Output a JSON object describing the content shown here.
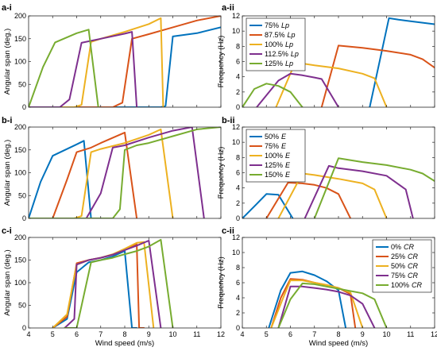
{
  "figure": {
    "colors": [
      "#0072BD",
      "#D95319",
      "#EDB120",
      "#7E2F8E",
      "#77AC30"
    ]
  },
  "chart_data": [
    {
      "id": "a-i",
      "panel_label": "a-i",
      "type": "line",
      "xlabel": "",
      "ylabel": "Angular span (deg.)",
      "xlim": [
        4,
        12
      ],
      "ylim": [
        0,
        200
      ],
      "xticks": [],
      "yticks": [
        0,
        50,
        100,
        150,
        200
      ],
      "legend": null,
      "series": [
        {
          "x": [
            4,
            9.5,
            9.7,
            10,
            11,
            12
          ],
          "y": [
            0,
            0,
            3,
            155,
            162,
            175
          ]
        },
        {
          "x": [
            4,
            7.5,
            7.9,
            8.3,
            9,
            10,
            11,
            12
          ],
          "y": [
            0,
            0,
            10,
            150,
            160,
            175,
            190,
            200
          ]
        },
        {
          "x": [
            4,
            5.9,
            6.2,
            6.6,
            7,
            8,
            9,
            9.5,
            9.6
          ],
          "y": [
            0,
            0,
            5,
            143,
            150,
            165,
            182,
            195,
            0
          ]
        },
        {
          "x": [
            4,
            5.3,
            5.7,
            6.2,
            7,
            8,
            8.3,
            8.5
          ],
          "y": [
            0,
            0,
            17,
            141,
            150,
            161,
            165,
            0
          ]
        },
        {
          "x": [
            4,
            4.6,
            5.1,
            6,
            6.5,
            6.9
          ],
          "y": [
            0,
            88,
            142,
            162,
            170,
            0
          ]
        }
      ]
    },
    {
      "id": "a-ii",
      "panel_label": "a-ii",
      "type": "line",
      "xlabel": "",
      "ylabel": "Frequency (Hz)",
      "xlim": [
        4,
        12
      ],
      "ylim": [
        0,
        12
      ],
      "xticks": [],
      "yticks": [
        0,
        2,
        4,
        6,
        8,
        10,
        12
      ],
      "legend": {
        "position": "top-left",
        "entries": [
          "75%",
          "87.5%",
          "100%",
          "112.5%",
          "125%"
        ],
        "suffix": "Lp"
      },
      "series": [
        {
          "x": [
            9.3,
            10.1,
            10.5,
            11,
            11.5,
            12
          ],
          "y": [
            0,
            11.7,
            11.5,
            11.3,
            11.1,
            10.9
          ]
        },
        {
          "x": [
            7.3,
            8,
            9,
            10,
            11,
            11.5,
            12
          ],
          "y": [
            0,
            8.1,
            7.8,
            7.4,
            6.9,
            6.3,
            5.2
          ]
        },
        {
          "x": [
            5.4,
            6.2,
            7,
            8,
            9,
            9.5,
            10
          ],
          "y": [
            0,
            5.9,
            5.5,
            5.1,
            4.4,
            3.8,
            0
          ]
        },
        {
          "x": [
            4.6,
            5.5,
            6,
            6.5,
            7,
            7.3,
            8
          ],
          "y": [
            0,
            3.5,
            4.4,
            4.2,
            3.9,
            3.7,
            0
          ]
        },
        {
          "x": [
            4,
            4.5,
            5,
            5.5,
            6,
            6.5
          ],
          "y": [
            0,
            2.4,
            3.1,
            2.8,
            2.0,
            0
          ]
        }
      ]
    },
    {
      "id": "b-i",
      "panel_label": "b-i",
      "type": "line",
      "xlabel": "",
      "ylabel": "Angular span (deg.)",
      "xlim": [
        4,
        12
      ],
      "ylim": [
        0,
        200
      ],
      "xticks": [],
      "yticks": [
        0,
        50,
        100,
        150,
        200
      ],
      "legend": null,
      "series": [
        {
          "x": [
            4,
            4.5,
            5,
            6,
            6.3,
            6.6
          ],
          "y": [
            0,
            80,
            137,
            162,
            170,
            0
          ]
        },
        {
          "x": [
            4,
            5,
            5.6,
            6,
            6.6,
            7,
            8,
            8.5
          ],
          "y": [
            0,
            0,
            85,
            145,
            155,
            165,
            188,
            0
          ]
        },
        {
          "x": [
            4,
            5.9,
            6.2,
            6.6,
            7,
            8,
            9,
            9.5,
            10
          ],
          "y": [
            0,
            0,
            5,
            145,
            152,
            165,
            183,
            195,
            0
          ]
        },
        {
          "x": [
            4,
            6.4,
            7,
            7.5,
            8,
            9,
            10,
            10.8,
            11.3
          ],
          "y": [
            0,
            0,
            55,
            155,
            160,
            177,
            192,
            200,
            0
          ]
        },
        {
          "x": [
            4,
            7.5,
            7.8,
            8,
            8.5,
            9,
            10,
            11,
            12
          ],
          "y": [
            0,
            0,
            20,
            150,
            160,
            165,
            180,
            195,
            200
          ]
        }
      ]
    },
    {
      "id": "b-ii",
      "panel_label": "b-ii",
      "type": "line",
      "xlabel": "",
      "ylabel": "Frequency (Hz)",
      "xlim": [
        4,
        12
      ],
      "ylim": [
        0,
        12
      ],
      "xticks": [],
      "yticks": [
        0,
        2,
        4,
        6,
        8,
        10,
        12
      ],
      "legend": {
        "position": "top-left",
        "entries": [
          "50%",
          "75%",
          "100%",
          "125%",
          "150%"
        ],
        "suffix": "E"
      },
      "series": [
        {
          "x": [
            4,
            4.6,
            5,
            5.5,
            6.1
          ],
          "y": [
            0,
            1.9,
            3.2,
            3.1,
            0
          ]
        },
        {
          "x": [
            5,
            5.9,
            6.5,
            7,
            7.5,
            8,
            8.5
          ],
          "y": [
            0,
            4.7,
            4.6,
            4.4,
            4.0,
            3.2,
            0
          ]
        },
        {
          "x": [
            5.5,
            6.5,
            7,
            8,
            9,
            9.5,
            10
          ],
          "y": [
            0,
            5.9,
            5.7,
            5.2,
            4.6,
            3.8,
            0
          ]
        },
        {
          "x": [
            6.6,
            7.6,
            8,
            9,
            10,
            10.8,
            11.1
          ],
          "y": [
            0,
            6.9,
            6.6,
            6.2,
            5.6,
            3.8,
            0
          ]
        },
        {
          "x": [
            7,
            8,
            9,
            10,
            11,
            11.5,
            12
          ],
          "y": [
            0,
            7.9,
            7.4,
            7.0,
            6.4,
            5.9,
            4.9
          ]
        }
      ]
    },
    {
      "id": "c-i",
      "panel_label": "c-i",
      "type": "line",
      "xlabel": "Wind speed (m/s)",
      "ylabel": "Angular span (deg.)",
      "xlim": [
        4,
        12
      ],
      "ylim": [
        0,
        200
      ],
      "xticks": [
        4,
        5,
        6,
        7,
        8,
        9,
        10,
        11,
        12
      ],
      "yticks": [
        0,
        50,
        100,
        150,
        200
      ],
      "legend": null,
      "series": [
        {
          "x": [
            5,
            5.6,
            6,
            6.5,
            7,
            7.5,
            8,
            8.3,
            8.5
          ],
          "y": [
            0,
            20,
            123,
            145,
            150,
            158,
            170,
            0,
            0
          ]
        },
        {
          "x": [
            5,
            5.6,
            6,
            6.5,
            7,
            7.5,
            8,
            8.5,
            8.6,
            8.8
          ],
          "y": [
            0,
            25,
            143,
            150,
            155,
            162,
            172,
            185,
            0,
            0
          ]
        },
        {
          "x": [
            5,
            5.6,
            6,
            6.5,
            7,
            7.5,
            8,
            8.5,
            8.8,
            9.2
          ],
          "y": [
            0,
            30,
            140,
            150,
            155,
            163,
            175,
            188,
            190,
            0
          ]
        },
        {
          "x": [
            5.5,
            5.9,
            6,
            6.5,
            7,
            7.5,
            8,
            8.5,
            9,
            9.5
          ],
          "y": [
            0,
            20,
            140,
            150,
            155,
            162,
            172,
            182,
            193,
            0
          ]
        },
        {
          "x": [
            5.5,
            6,
            6.6,
            7,
            7.5,
            8,
            8.5,
            9,
            9.5,
            10
          ],
          "y": [
            0,
            0,
            145,
            150,
            155,
            163,
            170,
            180,
            195,
            0
          ]
        }
      ]
    },
    {
      "id": "c-ii",
      "panel_label": "c-ii",
      "type": "line",
      "xlabel": "Wind speed (m/s)",
      "ylabel": "Frequency (Hz)",
      "xlim": [
        4,
        12
      ],
      "ylim": [
        0,
        12
      ],
      "xticks": [
        4,
        5,
        6,
        7,
        8,
        9,
        10,
        11,
        12
      ],
      "yticks": [
        0,
        2,
        4,
        6,
        8,
        10,
        12
      ],
      "legend": {
        "position": "top-right",
        "entries": [
          "0%",
          "25%",
          "50%",
          "75%",
          "100%"
        ],
        "suffix": "CR"
      },
      "series": [
        {
          "x": [
            5.1,
            5.6,
            6,
            6.5,
            7,
            7.5,
            8,
            8.3
          ],
          "y": [
            0,
            5.0,
            7.3,
            7.5,
            7.0,
            6.2,
            5.0,
            0
          ]
        },
        {
          "x": [
            5.2,
            5.6,
            6,
            6.5,
            7,
            7.5,
            8,
            8.5,
            8.7
          ],
          "y": [
            0,
            4.0,
            6.5,
            6.4,
            6.0,
            5.7,
            5.3,
            4.5,
            0
          ]
        },
        {
          "x": [
            5.2,
            5.7,
            6,
            6.5,
            7,
            7.5,
            8,
            8.5,
            9
          ],
          "y": [
            0,
            4.0,
            6.3,
            6.3,
            6.0,
            5.7,
            5.3,
            4.7,
            0
          ]
        },
        {
          "x": [
            5.5,
            6,
            6.5,
            7,
            7.5,
            8,
            8.5,
            9,
            9.5
          ],
          "y": [
            0,
            5.5,
            5.5,
            5.3,
            5.1,
            4.8,
            4.3,
            3.2,
            0
          ]
        },
        {
          "x": [
            5.5,
            6,
            6.5,
            7,
            7.5,
            8,
            9,
            9.5,
            10
          ],
          "y": [
            0,
            3.8,
            5.9,
            5.8,
            5.5,
            5.2,
            4.6,
            3.8,
            0
          ]
        }
      ]
    }
  ]
}
